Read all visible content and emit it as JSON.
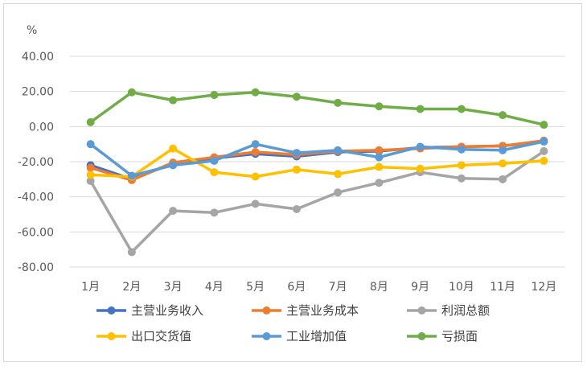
{
  "chart_data": {
    "type": "line",
    "title": "",
    "xlabel": "",
    "ylabel": "%",
    "ylim": [
      -80,
      40
    ],
    "yticks": [
      -80,
      -60,
      -40,
      -20,
      0,
      20,
      40
    ],
    "ytick_labels": [
      "-80.00",
      "-60.00",
      "-40.00",
      "-20.00",
      "0.00",
      "20.00",
      "40.00"
    ],
    "grid": true,
    "legend_position": "bottom",
    "categories": [
      "1月",
      "2月",
      "3月",
      "4月",
      "5月",
      "6月",
      "7月",
      "8月",
      "9月",
      "10月",
      "11月",
      "12月"
    ],
    "series": [
      {
        "name": "主营业务收入",
        "color": "#4472c4",
        "values": [
          -22,
          -30,
          -21,
          -18,
          -15.5,
          -17,
          -14.5,
          -14,
          -12,
          -11.5,
          -11,
          -8.5
        ]
      },
      {
        "name": "主营业务成本",
        "color": "#ed7d31",
        "values": [
          -23.5,
          -30.5,
          -20.5,
          -17.5,
          -14.5,
          -16,
          -14,
          -13.5,
          -12.5,
          -11.5,
          -11,
          -8
        ]
      },
      {
        "name": "利润总额",
        "color": "#a5a5a5",
        "values": [
          -31,
          -71.5,
          -48,
          -49,
          -44,
          -47,
          -37.5,
          -32,
          -26,
          -29.5,
          -30,
          -14
        ]
      },
      {
        "name": "出口交货值",
        "color": "#ffc000",
        "values": [
          -27.5,
          -28.5,
          -12.5,
          -26,
          -28.5,
          -24.5,
          -27,
          -23,
          -24,
          -22,
          -21,
          -19.5
        ]
      },
      {
        "name": "工业增加值",
        "color": "#5b9bd5",
        "values": [
          -10,
          -28,
          -22,
          -19.5,
          -10,
          -15,
          -13.5,
          -17.5,
          -11.5,
          -13,
          -13.5,
          -8.5
        ]
      },
      {
        "name": "亏损面",
        "color": "#70ad47",
        "values": [
          2.5,
          19.5,
          15,
          18,
          19.5,
          17,
          13.5,
          11.5,
          10,
          10,
          6.5,
          1
        ]
      }
    ]
  }
}
